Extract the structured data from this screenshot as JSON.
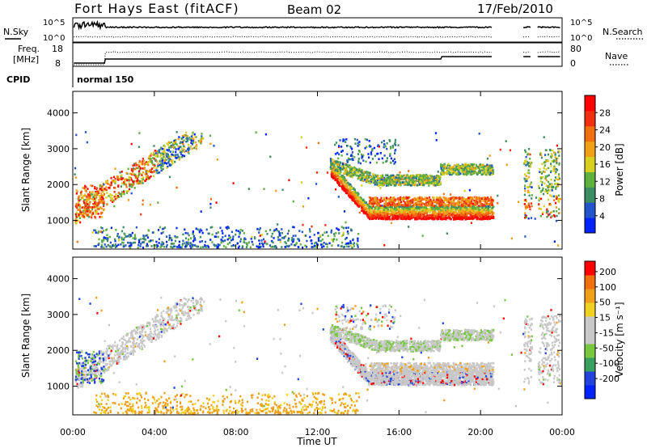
{
  "header": {
    "title": "Fort Hays East (fitACF)",
    "beam": "Beam 02",
    "date": "17/Feb/2010"
  },
  "top_panels": {
    "nsky_label": "N.Sky",
    "nsky_ticks": [
      "10^5",
      "10^0"
    ],
    "nsearch_label": "N.Search",
    "nsearch_ticks": [
      "10^5",
      "10^0"
    ],
    "freq_label_1": "Freq.",
    "freq_label_2": "[MHz]",
    "freq_ticks": [
      "18",
      "8"
    ],
    "nave_label": "Nave",
    "nave_ticks": [
      "80",
      "0"
    ],
    "cpid_label": "CPID",
    "cpid_value": "normal 150"
  },
  "chart_data": [
    {
      "type": "heatmap",
      "name": "power",
      "ylabel": "Slant Range [km]",
      "yticks": [
        1000,
        2000,
        3000,
        4000
      ],
      "ylim": [
        200,
        4600
      ],
      "xlim": [
        0,
        24
      ],
      "colorbar_label": "Power [dB]",
      "colorbar_ticks": [
        "4",
        "8",
        "12",
        "16",
        "20",
        "24",
        "28"
      ],
      "colorbar_colors": [
        "#0022ff",
        "#2255cc",
        "#3c8c64",
        "#60b040",
        "#d8d020",
        "#f0a018",
        "#f07010",
        "#f03010",
        "#ff0000"
      ]
    },
    {
      "type": "heatmap",
      "name": "velocity",
      "ylabel": "Slant Range [km]",
      "yticks": [
        1000,
        2000,
        3000,
        4000
      ],
      "ylim": [
        200,
        4600
      ],
      "xlim": [
        0,
        24
      ],
      "colorbar_label": "Velocity [m s⁻¹]",
      "colorbar_ticks": [
        "200",
        "100",
        "50",
        "15",
        "-15",
        "-50",
        "-100",
        "-200"
      ],
      "colorbar_colors": [
        "#0022ff",
        "#2244dd",
        "#3aa060",
        "#78c840",
        "#c8c8c8",
        "#c8c8c8",
        "#f0d020",
        "#f0a018",
        "#f07010",
        "#ff0000"
      ]
    }
  ],
  "xaxis": {
    "ticks": [
      "00:00",
      "04:00",
      "08:00",
      "12:00",
      "16:00",
      "20:00",
      "00:00"
    ],
    "label": "Time UT"
  }
}
